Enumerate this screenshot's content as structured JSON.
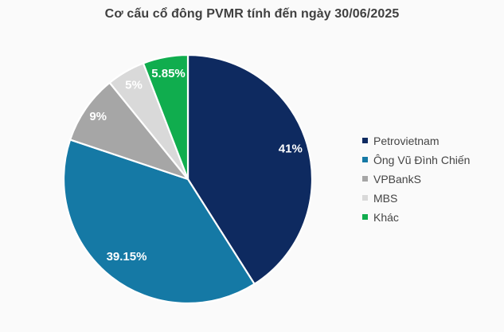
{
  "title": "Cơ cấu cổ đông PVMR tính đến ngày 30/06/2025",
  "colors": {
    "background": "#fafafa",
    "title_text": "#404040",
    "legend_text": "#444444",
    "slice_border": "#ffffff",
    "slice_label_text": "#ffffff"
  },
  "chart_data": {
    "type": "pie",
    "title": "Cơ cấu cổ đông PVMR tính đến ngày 30/06/2025",
    "start_angle_deg": 0,
    "direction": "clockwise",
    "legend_position": "right",
    "series": [
      {
        "name": "Petrovietnam",
        "value": 41,
        "label": "41%",
        "color": "#0e2a60",
        "label_r": 0.86
      },
      {
        "name": "Ông Vũ Đình Chiến",
        "value": 39.15,
        "label": "39.15%",
        "color": "#1579a5",
        "label_r": 0.8
      },
      {
        "name": "VPBankS",
        "value": 9,
        "label": "9%",
        "color": "#a6a6a6",
        "label_r": 0.88
      },
      {
        "name": "MBS",
        "value": 5,
        "label": "5%",
        "color": "#d9d9d9",
        "label_r": 0.87
      },
      {
        "name": "Khác",
        "value": 5.85,
        "label": "5.85%",
        "color": "#10ad4e",
        "label_r": 0.86
      }
    ]
  }
}
